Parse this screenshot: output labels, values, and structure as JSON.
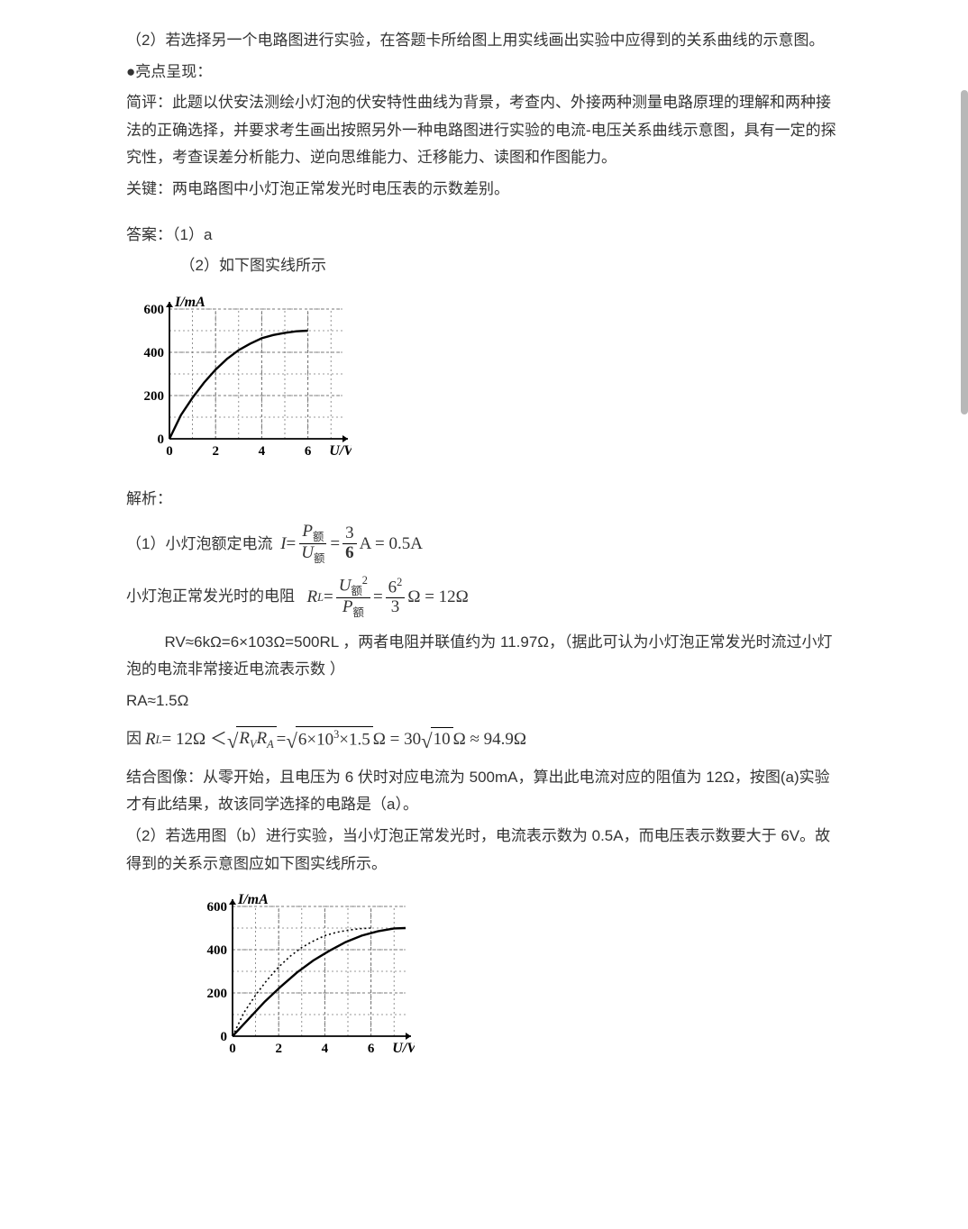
{
  "q2": {
    "text": "（2）若选择另一个电路图进行实验，在答题卡所给图上用实线画出实验中应得到的关系曲线的示意图。"
  },
  "highlight": {
    "title": "●亮点呈现：",
    "p1": "简评：此题以伏安法测绘小灯泡的伏安特性曲线为背景，考查内、外接两种测量电路原理的理解和两种接法的正确选择，并要求考生画出按照另外一种电路图进行实验的电流-电压关系曲线示意图，具有一定的探究性，考查误差分析能力、逆向思维能力、迁移能力、读图和作图能力。",
    "p2": "关键：两电路图中小灯泡正常发光时电压表的示数差别。"
  },
  "answer": {
    "head": "答案：（1）a",
    "sub": "（2）如下图实线所示"
  },
  "chart1": {
    "ylabel": "I/mA",
    "xlabel": "U/V",
    "yticks": [
      0,
      200,
      400,
      600
    ],
    "xticks": [
      0,
      2,
      4,
      6
    ],
    "ylim": [
      0,
      600
    ],
    "xlim": [
      0,
      7.5
    ],
    "bg": "#ffffff",
    "axis_color": "#000000",
    "grid_color": "#777777",
    "curve_color": "#000000",
    "curve": [
      [
        0,
        0
      ],
      [
        0.5,
        110
      ],
      [
        1,
        190
      ],
      [
        1.5,
        260
      ],
      [
        2,
        320
      ],
      [
        2.5,
        370
      ],
      [
        3,
        410
      ],
      [
        3.5,
        440
      ],
      [
        4,
        465
      ],
      [
        4.5,
        480
      ],
      [
        5,
        490
      ],
      [
        5.5,
        497
      ],
      [
        6,
        500
      ]
    ]
  },
  "analysis": {
    "head": "解析：",
    "f1_lead": "（1）小灯泡额定电流",
    "f1": {
      "lhs": "I =",
      "n1": "P",
      "n1s": "额",
      "d1": "U",
      "d1s": "额",
      "mid": "=",
      "n2": "3",
      "d2": "6",
      "tail": "A = 0.5A"
    },
    "f2_lead": "小灯泡正常发光时的电阻",
    "f2": {
      "lhs": "R",
      "lhss": "L",
      "eq": " = ",
      "n1": "U",
      "n1s": "额",
      "n1e": "2",
      "d1": "P",
      "d1s": "额",
      "mid": " = ",
      "n2": "6",
      "n2e": "2",
      "d2": "3",
      "tail": "Ω = 12Ω"
    },
    "p_rv": "RV≈6kΩ=6×103Ω=500RL ，两者电阻并联值约为 11.97Ω，（据此可认为小灯泡正常发光时流过小灯泡的电流非常接近电流表示数 ）",
    "p_ra": "RA≈1.5Ω",
    "f3_lead": "因 ",
    "f3": {
      "lhs": "R",
      "lhss": "L",
      "body": " = 12Ω ＜ ",
      "sqrt1": "R",
      "sqrt1s": "V",
      "sqrt1b": "R",
      "sqrt1bs": "A",
      "mid": " = ",
      "sqrt2": "6×10",
      "sqrt2e": "3",
      "sqrt2t": "×1.5",
      "unit": "Ω = 30",
      "sqrt3": "10",
      "tail": "Ω ≈ 94.9Ω"
    },
    "p_conc": "结合图像：从零开始，且电压为 6 伏时对应电流为 500mA，算出此电流对应的阻值为 12Ω，按图(a)实验才有此结果，故该同学选择的电路是（a）。",
    "p_q2": "（2）若选用图（b）进行实验，当小灯泡正常发光时，电流表示数为 0.5A，而电压表示数要大于 6V。故得到的关系示意图应如下图实线所示。"
  },
  "chart2": {
    "ylabel": "I/mA",
    "xlabel": "U/V",
    "yticks": [
      0,
      200,
      400,
      600
    ],
    "xticks": [
      0,
      2,
      4,
      6
    ],
    "ylim": [
      0,
      600
    ],
    "xlim": [
      0,
      7.5
    ],
    "bg": "#ffffff",
    "axis_color": "#000000",
    "grid_color": "#777777",
    "curve_color": "#000000",
    "dotted_curve": [
      [
        0,
        0
      ],
      [
        0.5,
        110
      ],
      [
        1,
        190
      ],
      [
        1.5,
        260
      ],
      [
        2,
        320
      ],
      [
        2.5,
        370
      ],
      [
        3,
        410
      ],
      [
        3.5,
        440
      ],
      [
        4,
        465
      ],
      [
        4.5,
        480
      ],
      [
        5,
        490
      ],
      [
        5.5,
        497
      ],
      [
        6,
        500
      ]
    ],
    "solid_curve": [
      [
        0,
        0
      ],
      [
        0.7,
        80
      ],
      [
        1.4,
        160
      ],
      [
        2.1,
        230
      ],
      [
        2.8,
        295
      ],
      [
        3.5,
        350
      ],
      [
        4.2,
        395
      ],
      [
        4.9,
        435
      ],
      [
        5.6,
        465
      ],
      [
        6.3,
        485
      ],
      [
        7,
        498
      ],
      [
        7.5,
        500
      ]
    ]
  }
}
